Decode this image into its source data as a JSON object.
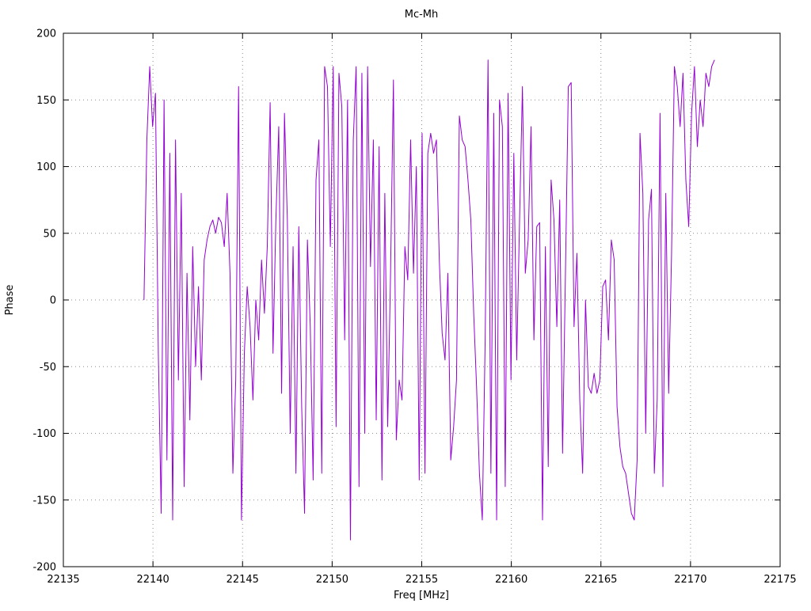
{
  "title": "Mc-Mh",
  "colors": {
    "trace": "#9400d3",
    "grid": "#8c8c8c",
    "border": "#000000",
    "background": "#ffffff"
  },
  "chart_data": {
    "type": "line",
    "title": "Mc-Mh",
    "xlabel": "Freq [MHz]",
    "ylabel": "Phase",
    "xlim": [
      22135,
      22175
    ],
    "ylim": [
      -200,
      200
    ],
    "xticks": [
      22135,
      22140,
      22145,
      22150,
      22155,
      22160,
      22165,
      22170,
      22175
    ],
    "yticks": [
      -200,
      -150,
      -100,
      -50,
      0,
      50,
      100,
      150,
      200
    ],
    "grid": true,
    "legend": "none",
    "line_color": "#9400d3",
    "series": [
      {
        "name": "Mc-Mh",
        "x_start": 22139.5,
        "x_step": 0.16,
        "values": [
          0,
          120,
          175,
          130,
          155,
          -40,
          -160,
          150,
          -120,
          110,
          -165,
          120,
          -60,
          80,
          -140,
          20,
          -90,
          40,
          -50,
          10,
          -60,
          30,
          45,
          55,
          60,
          50,
          62,
          58,
          40,
          80,
          20,
          -130,
          -60,
          160,
          -165,
          -40,
          10,
          -20,
          -75,
          0,
          -30,
          30,
          -10,
          40,
          148,
          -40,
          60,
          130,
          -70,
          140,
          60,
          -100,
          40,
          -130,
          55,
          -80,
          -160,
          45,
          -20,
          -135,
          90,
          120,
          -130,
          175,
          160,
          40,
          175,
          -95,
          170,
          145,
          -30,
          150,
          -180,
          120,
          175,
          -140,
          170,
          -100,
          175,
          25,
          120,
          -90,
          115,
          -135,
          80,
          -95,
          20,
          165,
          -105,
          -60,
          -75,
          40,
          15,
          120,
          20,
          100,
          -135,
          125,
          -130,
          110,
          125,
          110,
          120,
          30,
          -25,
          -45,
          20,
          -120,
          -95,
          -60,
          138,
          120,
          115,
          90,
          60,
          -10,
          -65,
          -130,
          -165,
          -30,
          180,
          -130,
          140,
          -165,
          150,
          130,
          -140,
          155,
          -60,
          110,
          -45,
          60,
          160,
          20,
          45,
          130,
          -30,
          55,
          58,
          -165,
          40,
          -125,
          90,
          60,
          -20,
          75,
          -115,
          20,
          160,
          163,
          -20,
          35,
          -75,
          -130,
          0,
          -65,
          -70,
          -55,
          -70,
          -60,
          10,
          15,
          -30,
          45,
          30,
          -80,
          -110,
          -125,
          -130,
          -145,
          -160,
          -165,
          -120,
          125,
          80,
          -100,
          60,
          83,
          -130,
          -75,
          140,
          -140,
          80,
          -70,
          33,
          175,
          160,
          130,
          170,
          90,
          55,
          140,
          175,
          115,
          150,
          130,
          170,
          160,
          175,
          180
        ]
      }
    ]
  }
}
